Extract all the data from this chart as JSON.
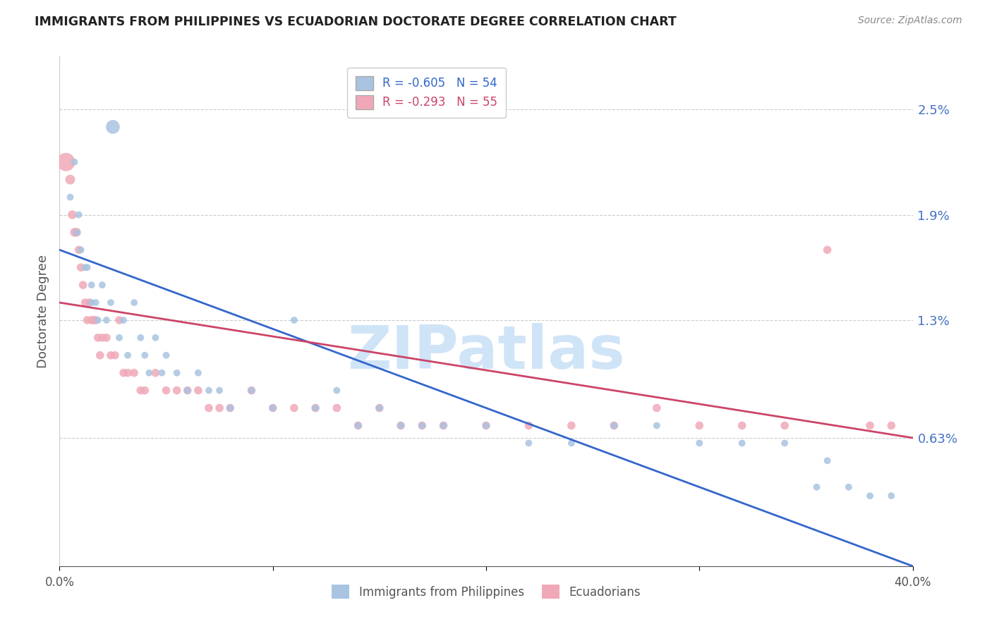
{
  "title": "IMMIGRANTS FROM PHILIPPINES VS ECUADORIAN DOCTORATE DEGREE CORRELATION CHART",
  "source": "Source: ZipAtlas.com",
  "ylabel": "Doctorate Degree",
  "yticklabels": [
    "0.63%",
    "1.3%",
    "1.9%",
    "2.5%"
  ],
  "ytick_values": [
    0.0063,
    0.013,
    0.019,
    0.025
  ],
  "xlim": [
    0.0,
    0.4
  ],
  "ylim": [
    -0.001,
    0.028
  ],
  "blue_R": -0.605,
  "blue_N": 54,
  "pink_R": -0.293,
  "pink_N": 55,
  "blue_color": "#a8c4e0",
  "pink_color": "#f0a8b8",
  "blue_line_color": "#3366cc",
  "pink_line_color": "#cc4466",
  "blue_legend_text_color": "#3366cc",
  "pink_legend_text_color": "#cc4466",
  "watermark": "ZIPatlas",
  "watermark_color": "#d0e4f8",
  "legend_label_blue": "Immigrants from Philippines",
  "legend_label_pink": "Ecuadorians",
  "blue_line_x0": 0.0,
  "blue_line_y0": 0.017,
  "blue_line_x1": 0.4,
  "blue_line_y1": -0.001,
  "pink_line_x0": 0.0,
  "pink_line_y0": 0.014,
  "pink_line_x1": 0.4,
  "pink_line_y1": 0.0063,
  "blue_scatter_x": [
    0.005,
    0.007,
    0.008,
    0.009,
    0.01,
    0.012,
    0.013,
    0.015,
    0.015,
    0.017,
    0.018,
    0.02,
    0.022,
    0.024,
    0.025,
    0.028,
    0.03,
    0.032,
    0.035,
    0.038,
    0.04,
    0.042,
    0.045,
    0.048,
    0.05,
    0.055,
    0.06,
    0.065,
    0.07,
    0.075,
    0.08,
    0.09,
    0.1,
    0.11,
    0.12,
    0.13,
    0.14,
    0.15,
    0.16,
    0.17,
    0.18,
    0.2,
    0.22,
    0.24,
    0.26,
    0.28,
    0.3,
    0.32,
    0.34,
    0.355,
    0.36,
    0.37,
    0.38,
    0.39
  ],
  "blue_scatter_y": [
    0.02,
    0.022,
    0.018,
    0.019,
    0.017,
    0.016,
    0.016,
    0.015,
    0.014,
    0.014,
    0.013,
    0.015,
    0.013,
    0.014,
    0.024,
    0.012,
    0.013,
    0.011,
    0.014,
    0.012,
    0.011,
    0.01,
    0.012,
    0.01,
    0.011,
    0.01,
    0.009,
    0.01,
    0.009,
    0.009,
    0.008,
    0.009,
    0.008,
    0.013,
    0.008,
    0.009,
    0.007,
    0.008,
    0.007,
    0.007,
    0.007,
    0.007,
    0.006,
    0.006,
    0.007,
    0.007,
    0.006,
    0.006,
    0.006,
    0.0035,
    0.005,
    0.0035,
    0.003,
    0.003
  ],
  "blue_scatter_size": [
    50,
    50,
    50,
    50,
    50,
    50,
    50,
    50,
    50,
    50,
    50,
    50,
    50,
    50,
    200,
    50,
    50,
    50,
    50,
    50,
    50,
    50,
    50,
    50,
    50,
    50,
    50,
    50,
    50,
    50,
    50,
    50,
    50,
    50,
    50,
    50,
    50,
    50,
    50,
    50,
    50,
    50,
    50,
    50,
    50,
    50,
    50,
    50,
    50,
    50,
    50,
    50,
    50,
    50
  ],
  "pink_scatter_x": [
    0.003,
    0.005,
    0.006,
    0.007,
    0.008,
    0.009,
    0.01,
    0.011,
    0.012,
    0.013,
    0.014,
    0.015,
    0.016,
    0.017,
    0.018,
    0.019,
    0.02,
    0.022,
    0.024,
    0.026,
    0.028,
    0.03,
    0.032,
    0.035,
    0.038,
    0.04,
    0.045,
    0.05,
    0.055,
    0.06,
    0.065,
    0.07,
    0.075,
    0.08,
    0.09,
    0.1,
    0.11,
    0.12,
    0.13,
    0.14,
    0.15,
    0.16,
    0.17,
    0.18,
    0.2,
    0.22,
    0.24,
    0.26,
    0.28,
    0.3,
    0.32,
    0.34,
    0.36,
    0.38,
    0.39
  ],
  "pink_scatter_y": [
    0.022,
    0.021,
    0.019,
    0.018,
    0.018,
    0.017,
    0.016,
    0.015,
    0.014,
    0.013,
    0.014,
    0.013,
    0.013,
    0.013,
    0.012,
    0.011,
    0.012,
    0.012,
    0.011,
    0.011,
    0.013,
    0.01,
    0.01,
    0.01,
    0.009,
    0.009,
    0.01,
    0.009,
    0.009,
    0.009,
    0.009,
    0.008,
    0.008,
    0.008,
    0.009,
    0.008,
    0.008,
    0.008,
    0.008,
    0.007,
    0.008,
    0.007,
    0.007,
    0.007,
    0.007,
    0.007,
    0.007,
    0.007,
    0.008,
    0.007,
    0.007,
    0.007,
    0.017,
    0.007,
    0.007
  ],
  "pink_scatter_size": [
    350,
    100,
    80,
    80,
    80,
    70,
    70,
    70,
    70,
    70,
    70,
    70,
    70,
    70,
    70,
    70,
    70,
    70,
    70,
    70,
    70,
    70,
    70,
    70,
    70,
    70,
    70,
    70,
    70,
    70,
    70,
    70,
    70,
    70,
    70,
    70,
    70,
    70,
    70,
    70,
    70,
    70,
    70,
    70,
    70,
    70,
    70,
    70,
    70,
    70,
    70,
    70,
    70,
    70,
    70
  ]
}
